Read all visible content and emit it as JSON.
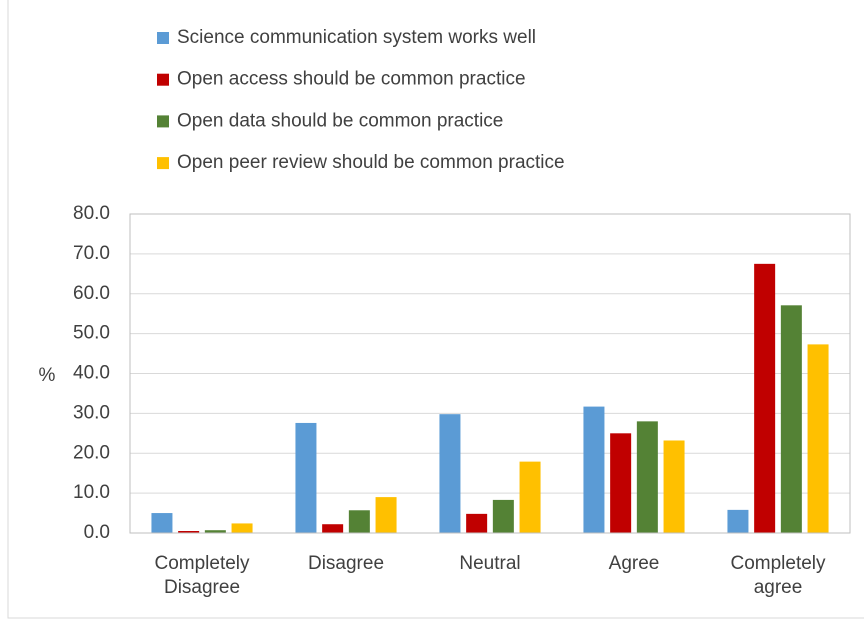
{
  "chart_data": {
    "type": "bar",
    "categories": [
      "Completely Disagree",
      "Disagree",
      "Neutral",
      "Agree",
      "Completely agree"
    ],
    "series": [
      {
        "name": "Science communication system works well",
        "color": "#5b9bd5",
        "values": [
          5.0,
          27.6,
          29.8,
          31.7,
          5.8
        ]
      },
      {
        "name": "Open access should be common practice",
        "color": "#c00000",
        "values": [
          0.5,
          2.2,
          4.8,
          25.0,
          67.5
        ]
      },
      {
        "name": "Open data should be common practice",
        "color": "#548235",
        "values": [
          0.7,
          5.7,
          8.3,
          28.0,
          57.1
        ]
      },
      {
        "name": "Open peer review should be common practice",
        "color": "#ffc000",
        "values": [
          2.4,
          9.0,
          17.9,
          23.2,
          47.3
        ]
      }
    ],
    "y_label": "%",
    "ylim": [
      0,
      80
    ],
    "yticks": [
      {
        "value": 0,
        "label": "0.0"
      },
      {
        "value": 10,
        "label": "10.0"
      },
      {
        "value": 20,
        "label": "20.0"
      },
      {
        "value": 30,
        "label": "30.0"
      },
      {
        "value": 40,
        "label": "40.0"
      },
      {
        "value": 50,
        "label": "50.0"
      },
      {
        "value": 60,
        "label": "60.0"
      },
      {
        "value": 70,
        "label": "70.0"
      },
      {
        "value": 80,
        "label": "80.0"
      }
    ],
    "grid": true
  }
}
